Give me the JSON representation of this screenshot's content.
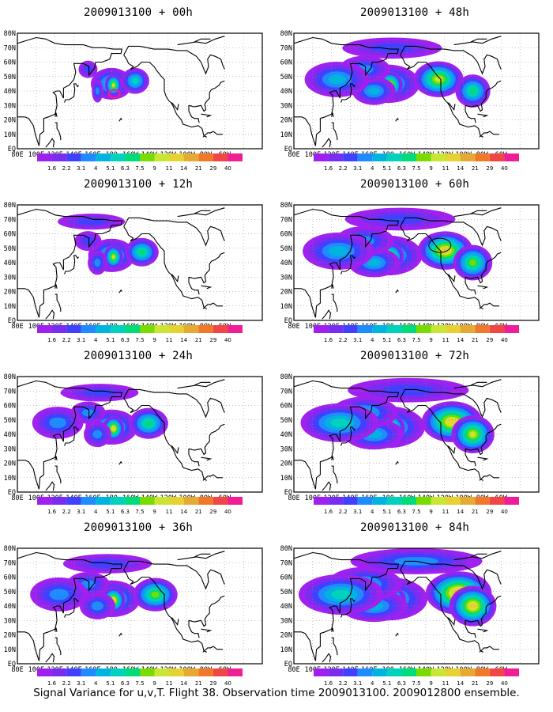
{
  "figure": {
    "footer": "Signal Variance for u,v,T. Flight 38. Observation time 2009013100. 2009012800 ensemble.",
    "lat_labels": [
      "EQ",
      "10N",
      "20N",
      "30N",
      "40N",
      "50N",
      "60N",
      "70N",
      "80N"
    ],
    "lon_labels": [
      "80E",
      "100E",
      "120E",
      "140E",
      "160E",
      "180",
      "160W",
      "140W",
      "120W",
      "100W",
      "80W",
      "60W"
    ],
    "colorbar": {
      "levels": [
        "1.6",
        "2.2",
        "3.1",
        "4",
        "5.1",
        "6.3",
        "7.5",
        "9",
        "11",
        "14",
        "21",
        "29",
        "40"
      ],
      "colors": [
        "#a020f0",
        "#7a2df0",
        "#4040ff",
        "#1e8cff",
        "#00b4e0",
        "#00d2be",
        "#00dc78",
        "#78dc00",
        "#c8e632",
        "#e6d232",
        "#e6aa32",
        "#f07828",
        "#f04646",
        "#f01e96"
      ]
    },
    "panels": [
      {
        "title": "2009013100 + 00h",
        "lead_h": 0
      },
      {
        "title": "2009013100 + 48h",
        "lead_h": 48
      },
      {
        "title": "2009013100 + 12h",
        "lead_h": 12
      },
      {
        "title": "2009013100 + 60h",
        "lead_h": 60
      },
      {
        "title": "2009013100 + 24h",
        "lead_h": 24
      },
      {
        "title": "2009013100 + 72h",
        "lead_h": 72
      },
      {
        "title": "2009013100 + 36h",
        "lead_h": 36
      },
      {
        "title": "2009013100 + 84h",
        "lead_h": 84
      }
    ]
  }
}
